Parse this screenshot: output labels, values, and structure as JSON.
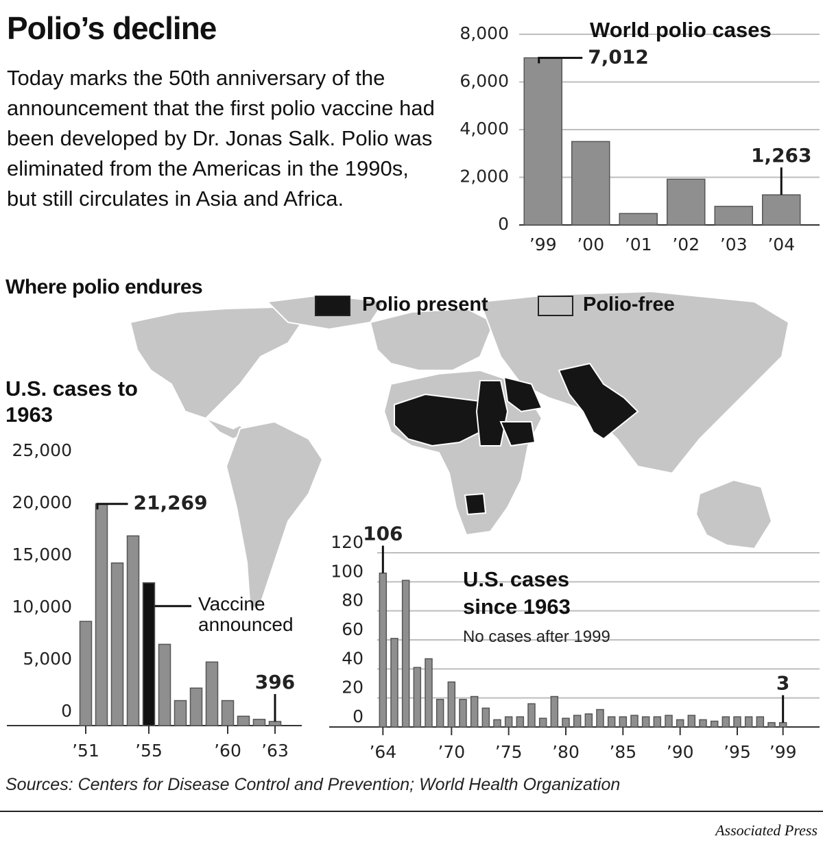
{
  "title": "Polio’s decline",
  "intro": "Today marks the 50th anniversary of the announcement that the first polio vaccine had been developed by Dr. Jonas Salk. Polio was eliminated from the Americas in the 1990s, but still circulates in Asia and Africa.",
  "map": {
    "title": "Where polio endures",
    "legend": [
      {
        "name": "Polio present",
        "color": "#151515"
      },
      {
        "name": "Polio-free",
        "color": "#c6c6c6"
      }
    ]
  },
  "chart_data": [
    {
      "type": "bar",
      "title": "World polio cases",
      "categories": [
        "’99",
        "’00",
        "’01",
        "’02",
        "’03",
        "’04"
      ],
      "values": [
        7012,
        3500,
        480,
        1920,
        780,
        1263
      ],
      "value_labels": [
        "7,012",
        null,
        null,
        null,
        null,
        "1,263"
      ],
      "color": "#8f8f8f",
      "ylim": [
        0,
        8000
      ],
      "yticks": [
        0,
        {
          "value": 2000,
          "label": "2,000"
        },
        {
          "value": 4000,
          "label": "4,000"
        },
        {
          "value": 6000,
          "label": "6,000"
        },
        {
          "value": 8000,
          "label": "8,000"
        }
      ],
      "grid": true
    },
    {
      "type": "bar",
      "title": "U.S. cases to 1963",
      "x": [
        1951,
        1952,
        1953,
        1954,
        1955,
        1956,
        1957,
        1958,
        1959,
        1960,
        1961,
        1962,
        1963
      ],
      "values": [
        10000,
        21269,
        15600,
        18200,
        13700,
        7800,
        2400,
        3600,
        6100,
        2400,
        900,
        600,
        396
      ],
      "value_labels": [
        null,
        "21,269",
        null,
        null,
        null,
        null,
        null,
        null,
        null,
        null,
        null,
        null,
        "396"
      ],
      "colors": [
        "#8f8f8f",
        "#8f8f8f",
        "#8f8f8f",
        "#8f8f8f",
        "#111111",
        "#8f8f8f",
        "#8f8f8f",
        "#8f8f8f",
        "#8f8f8f",
        "#8f8f8f",
        "#8f8f8f",
        "#8f8f8f",
        "#8f8f8f"
      ],
      "xlim": [
        1950.5,
        1963.5
      ],
      "xticks": [
        {
          "value": 1951,
          "label": "’51"
        },
        {
          "value": 1955,
          "label": "’55"
        },
        {
          "value": 1960,
          "label": "’60"
        },
        {
          "value": 1963,
          "label": "’63"
        }
      ],
      "ylim": [
        0,
        25000
      ],
      "yticks": [
        0,
        {
          "value": 5000,
          "label": "5,000"
        },
        {
          "value": 10000,
          "label": "10,000"
        },
        {
          "value": 15000,
          "label": "15,000"
        },
        {
          "value": 20000,
          "label": "20,000"
        },
        {
          "value": 25000,
          "label": "25,000"
        }
      ],
      "annotation": {
        "x": 1955,
        "text": "Vaccine announced"
      },
      "grid": false
    },
    {
      "type": "bar",
      "title": "U.S. cases since 1963",
      "subtitle": "No cases after 1999",
      "x": [
        1964,
        1965,
        1966,
        1967,
        1968,
        1969,
        1970,
        1971,
        1972,
        1973,
        1974,
        1975,
        1976,
        1977,
        1978,
        1979,
        1980,
        1981,
        1982,
        1983,
        1984,
        1985,
        1986,
        1987,
        1988,
        1989,
        1990,
        1991,
        1992,
        1993,
        1994,
        1995,
        1996,
        1997,
        1998,
        1999
      ],
      "values": [
        106,
        61,
        101,
        41,
        47,
        19,
        31,
        19,
        21,
        13,
        5,
        7,
        7,
        16,
        6,
        21,
        6,
        8,
        9,
        12,
        7,
        7,
        8,
        7,
        7,
        8,
        5,
        8,
        5,
        4,
        7,
        7,
        7,
        7,
        3,
        3
      ],
      "value_labels": [
        "106",
        null,
        null,
        null,
        null,
        null,
        null,
        null,
        null,
        null,
        null,
        null,
        null,
        null,
        null,
        null,
        null,
        null,
        null,
        null,
        null,
        null,
        null,
        null,
        null,
        null,
        null,
        null,
        null,
        null,
        null,
        null,
        null,
        null,
        null,
        "3"
      ],
      "color": "#8f8f8f",
      "xlim": [
        1963.5,
        1999.5
      ],
      "xticks": [
        {
          "value": 1964,
          "label": "’64"
        },
        {
          "value": 1970,
          "label": "’70"
        },
        {
          "value": 1975,
          "label": "’75"
        },
        {
          "value": 1980,
          "label": "’80"
        },
        {
          "value": 1985,
          "label": "’85"
        },
        {
          "value": 1990,
          "label": "’90"
        },
        {
          "value": 1995,
          "label": "’95"
        },
        {
          "value": 1999,
          "label": "’99"
        }
      ],
      "ylim": [
        0,
        120
      ],
      "yticks": [
        0,
        20,
        40,
        60,
        80,
        100,
        120
      ],
      "grid": true
    }
  ],
  "sources": "Sources: Centers for Disease Control and Prevention; World Health Organization",
  "credit": "Associated Press"
}
